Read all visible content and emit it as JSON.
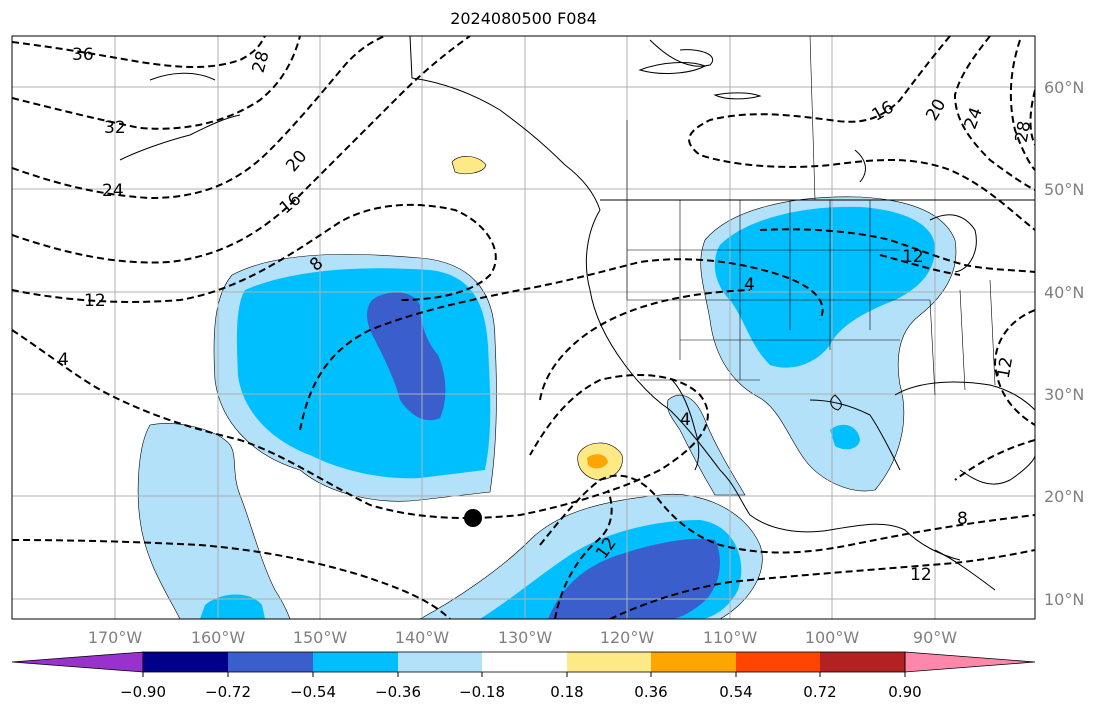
{
  "title": "2024080500 F084",
  "map": {
    "lon_labels": [
      "170°W",
      "160°W",
      "150°W",
      "140°W",
      "130°W",
      "120°W",
      "110°W",
      "100°W",
      "90°W"
    ],
    "lat_labels": [
      "60°N",
      "50°N",
      "40°N",
      "30°N",
      "20°N",
      "10°N"
    ],
    "contour_labels": [
      "36",
      "32",
      "28",
      "24",
      "20",
      "16",
      "12",
      "8",
      "4",
      "4",
      "4",
      "12",
      "12",
      "12",
      "16",
      "20",
      "24",
      "28",
      "8",
      "12"
    ],
    "colors": {
      "grid": "#b0b0b0",
      "neg_strong": "#3a5fcd",
      "neg_mid": "#00bfff",
      "neg_light": "#b2e1f9",
      "pos_light": "#fee987",
      "pos_mid": "#ffa500"
    }
  },
  "colorbar": {
    "tick_labels": [
      "−0.90",
      "−0.72",
      "−0.54",
      "−0.36",
      "−0.18",
      "0.18",
      "0.36",
      "0.54",
      "0.72",
      "0.90"
    ],
    "colors": [
      "#9932cc",
      "#00008b",
      "#3a5fcd",
      "#00bfff",
      "#b2e1f9",
      "#ffffff",
      "#fee987",
      "#ffa500",
      "#ff4500",
      "#b22222",
      "#ff88aa"
    ]
  }
}
